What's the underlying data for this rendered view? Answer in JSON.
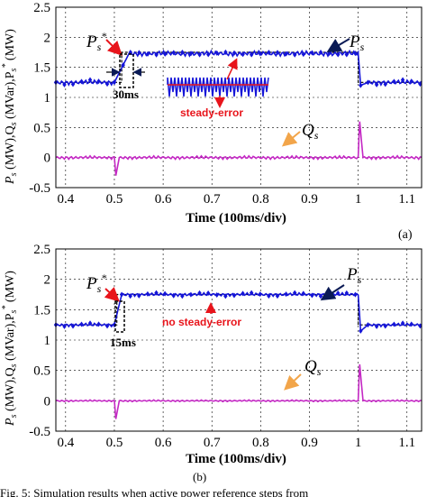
{
  "chart_data": [
    {
      "panel": "(a)",
      "type": "line",
      "xlabel": "Time (100ms/div)",
      "ylabel": "P_s (MW), Q_s (MVar), P_s* (MW)",
      "xlim": [
        0.38,
        1.13
      ],
      "ylim": [
        -0.5,
        2.5
      ],
      "xticks": [
        "0.4",
        "0.5",
        "0.6",
        "0.7",
        "0.8",
        "0.9",
        "1",
        "1.1"
      ],
      "yticks": [
        "-0.5",
        "0",
        "0.5",
        "1",
        "1.5",
        "2",
        "2.5"
      ],
      "series": [
        {
          "name": "P_s*",
          "color": "#000000",
          "x": [
            0.38,
            0.515,
            0.515,
            1.0,
            1.0,
            1.13
          ],
          "y": [
            1.25,
            1.25,
            1.75,
            1.75,
            1.25,
            1.25
          ]
        },
        {
          "name": "P_s",
          "color": "#1515d8",
          "x": [
            0.38,
            0.5,
            0.53,
            1.0,
            1.005,
            1.02,
            1.13
          ],
          "y": [
            1.25,
            1.25,
            1.73,
            1.73,
            1.2,
            1.25,
            1.25
          ],
          "ripple": 0.03
        },
        {
          "name": "Q_s",
          "color": "#c428c4",
          "x": [
            0.38,
            0.5,
            0.503,
            0.51,
            1.0,
            1.003,
            1.01,
            1.13
          ],
          "y": [
            0.0,
            0.0,
            -0.3,
            0.0,
            0.0,
            0.6,
            0.0,
            0.0
          ],
          "ripple": 0.02
        }
      ],
      "annotations": {
        "ps_star": "P_s*",
        "ps": "P_s",
        "qs": "Q_s",
        "delay": "30ms",
        "note": "steady-error"
      }
    },
    {
      "panel": "(b)",
      "type": "line",
      "xlabel": "Time (100ms/div)",
      "ylabel": "P_s (MW), Q_s (MVar), P_s* (MW)",
      "xlim": [
        0.38,
        1.13
      ],
      "ylim": [
        -0.5,
        2.5
      ],
      "xticks": [
        "0.4",
        "0.5",
        "0.6",
        "0.7",
        "0.8",
        "0.9",
        "1",
        "1.1"
      ],
      "yticks": [
        "-0.5",
        "0",
        "0.5",
        "1",
        "1.5",
        "2",
        "2.5"
      ],
      "series": [
        {
          "name": "P_s*",
          "color": "#000000",
          "x": [
            0.38,
            0.505,
            0.505,
            1.0,
            1.0,
            1.13
          ],
          "y": [
            1.25,
            1.25,
            1.75,
            1.75,
            1.25,
            1.25
          ]
        },
        {
          "name": "P_s",
          "color": "#1515d8",
          "x": [
            0.38,
            0.5,
            0.515,
            1.0,
            1.005,
            1.02,
            1.13
          ],
          "y": [
            1.25,
            1.25,
            1.75,
            1.75,
            1.15,
            1.25,
            1.25
          ],
          "ripple": 0.02
        },
        {
          "name": "Q_s",
          "color": "#c428c4",
          "x": [
            0.38,
            0.5,
            0.503,
            0.51,
            1.0,
            1.003,
            1.01,
            1.13
          ],
          "y": [
            0.0,
            0.0,
            -0.3,
            0.0,
            0.0,
            0.6,
            0.0,
            0.0
          ],
          "ripple": 0.01
        }
      ],
      "annotations": {
        "ps_star": "P_s*",
        "ps": "P_s",
        "qs": "Q_s",
        "delay": "15ms",
        "note": "no steady-error"
      }
    }
  ],
  "panel_labels": {
    "a": "(a)",
    "b": "(b)"
  },
  "caption_fragment": "Fig. 5: Simulation results when active power reference steps from"
}
